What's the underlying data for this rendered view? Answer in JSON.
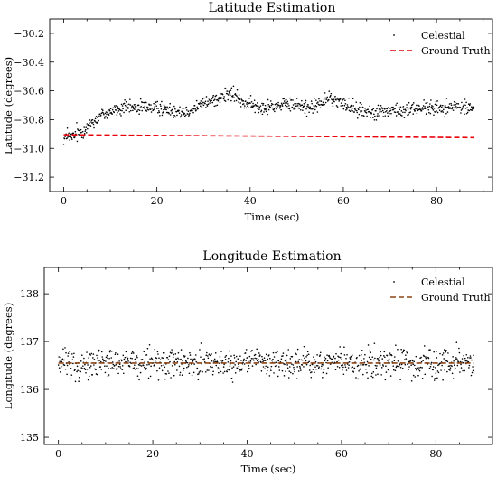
{
  "chart_data": [
    {
      "type": "scatter",
      "title": "Latitude Estimation",
      "xlabel": "Time (sec)",
      "ylabel": "Latitude (degrees)",
      "xlim": [
        -3,
        92
      ],
      "ylim": [
        -31.3,
        -30.1
      ],
      "xticks": [
        0,
        20,
        40,
        60,
        80
      ],
      "yticks": [
        -31.2,
        -31.0,
        -30.8,
        -30.6,
        -30.4,
        -30.2
      ],
      "ytick_labels": [
        "−31.2",
        "−31.0",
        "−30.8",
        "−30.6",
        "−30.4",
        "−30.2"
      ],
      "legend_position": "top-right",
      "grid": false,
      "series": [
        {
          "name": "Celestial",
          "style": "points",
          "color": "#000000",
          "x_start": 0,
          "x_end": 88,
          "trend": [
            [
              0,
              -30.93
            ],
            [
              2,
              -30.92
            ],
            [
              4,
              -30.88
            ],
            [
              6,
              -30.82
            ],
            [
              8,
              -30.77
            ],
            [
              10,
              -30.74
            ],
            [
              14,
              -30.72
            ],
            [
              18,
              -30.71
            ],
            [
              22,
              -30.73
            ],
            [
              26,
              -30.74
            ],
            [
              30,
              -30.69
            ],
            [
              34,
              -30.64
            ],
            [
              36,
              -30.62
            ],
            [
              38,
              -30.67
            ],
            [
              42,
              -30.72
            ],
            [
              46,
              -30.7
            ],
            [
              50,
              -30.7
            ],
            [
              54,
              -30.71
            ],
            [
              57,
              -30.65
            ],
            [
              60,
              -30.69
            ],
            [
              64,
              -30.74
            ],
            [
              68,
              -30.74
            ],
            [
              72,
              -30.74
            ],
            [
              76,
              -30.72
            ],
            [
              80,
              -30.72
            ],
            [
              84,
              -30.71
            ],
            [
              88,
              -30.72
            ]
          ],
          "spread": 0.045
        },
        {
          "name": "Ground Truth",
          "style": "dashed",
          "color": "#e8000b",
          "x": [
            0,
            88
          ],
          "y": [
            -30.905,
            -30.925
          ]
        }
      ]
    },
    {
      "type": "scatter",
      "title": "Longitude Estimation",
      "xlabel": "Time (sec)",
      "ylabel": "Longitude (degrees)",
      "xlim": [
        -3,
        92
      ],
      "ylim": [
        134.85,
        138.55
      ],
      "xticks": [
        0,
        20,
        40,
        60,
        80
      ],
      "yticks": [
        135,
        136,
        137,
        138
      ],
      "ytick_labels": [
        "135",
        "136",
        "137",
        "138"
      ],
      "legend_position": "top-right",
      "grid": false,
      "series": [
        {
          "name": "Celestial",
          "style": "points",
          "color": "#000000",
          "x_start": 0,
          "x_end": 88,
          "trend": [
            [
              0,
              136.55
            ],
            [
              88,
              136.55
            ]
          ],
          "spread": 0.28
        },
        {
          "name": "Ground Truth",
          "style": "dashed",
          "color": "#8b4513",
          "x": [
            0,
            88
          ],
          "y": [
            136.55,
            136.55
          ]
        }
      ]
    }
  ]
}
